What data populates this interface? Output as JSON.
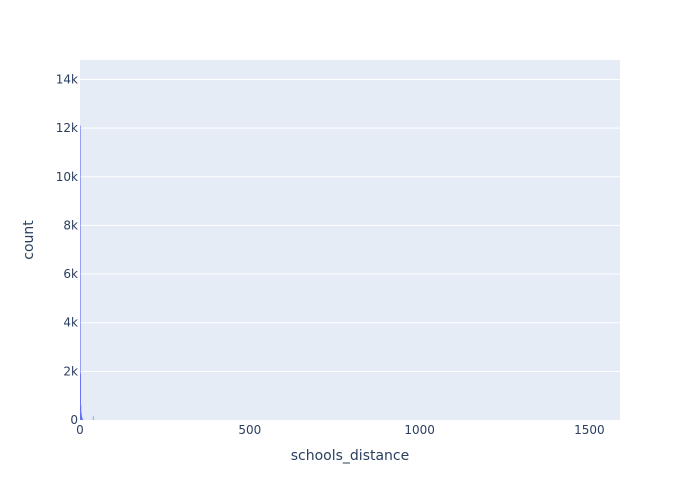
{
  "chart_data": {
    "type": "bar",
    "subtype": "histogram",
    "xlabel": "schools_distance",
    "ylabel": "count",
    "xlim": [
      0,
      1590
    ],
    "ylim": [
      0,
      14800
    ],
    "x_ticks": [
      0,
      500,
      1000,
      1500
    ],
    "x_tick_labels": [
      "0",
      "500",
      "1000",
      "1500"
    ],
    "y_ticks": [
      0,
      2000,
      4000,
      6000,
      8000,
      10000,
      12000,
      14000
    ],
    "y_tick_labels": [
      "0",
      "2k",
      "4k",
      "6k",
      "8k",
      "10k",
      "12k",
      "14k"
    ],
    "bin_width": 1,
    "bins": [
      {
        "x0": 0,
        "x1": 1,
        "count": 12100
      },
      {
        "x0": 1,
        "x1": 2,
        "count": 1900
      },
      {
        "x0": 2,
        "x1": 3,
        "count": 600
      },
      {
        "x0": 3,
        "x1": 4,
        "count": 300
      },
      {
        "x0": 4,
        "x1": 5,
        "count": 200
      },
      {
        "x0": 5,
        "x1": 6,
        "count": 120
      },
      {
        "x0": 6,
        "x1": 7,
        "count": 60
      },
      {
        "x0": 7,
        "x1": 8,
        "count": 30
      },
      {
        "x0": 8,
        "x1": 9,
        "count": 15
      },
      {
        "x0": 38,
        "x1": 39,
        "count": 150
      }
    ],
    "grid": true,
    "legend": false,
    "colors": {
      "bar": "#636efa",
      "plot_bg": "#e5ecf6",
      "grid": "#ffffff",
      "text": "#2a3f5f"
    }
  }
}
